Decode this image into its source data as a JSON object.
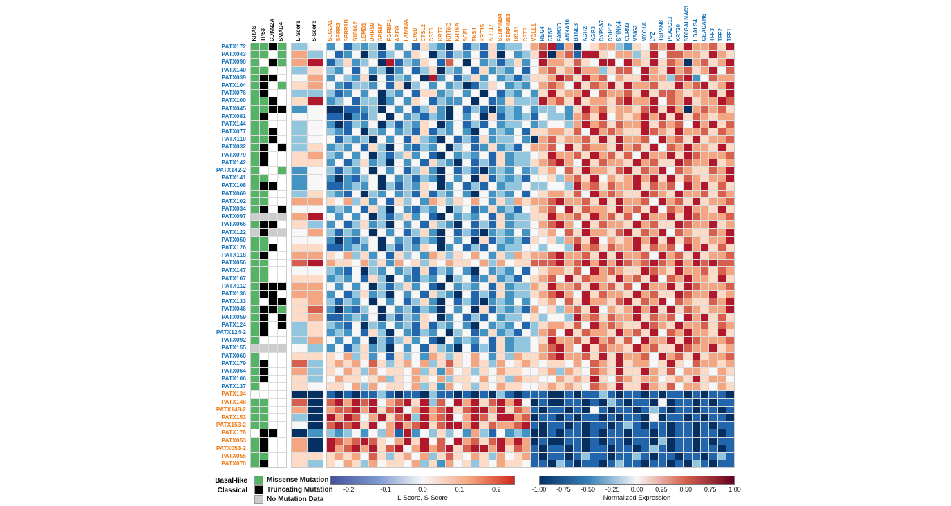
{
  "figure": {
    "class_legend": {
      "basal_label": "Basal-like",
      "classical_label": "Classical"
    },
    "mutation_legend": [
      {
        "label": "Missense Mutation",
        "color": "#54b365"
      },
      {
        "label": "Truncating Mutation",
        "color": "#000000"
      },
      {
        "label": "No Mutation Data",
        "color": "#cccccc"
      }
    ],
    "colorbar_score": {
      "ticks": [
        "-0.2",
        "-0.1",
        "0.0",
        "0.1",
        "0.2"
      ],
      "label": "L-Score, S-Score"
    },
    "colorbar_expression": {
      "ticks": [
        "-1.00",
        "-0.75",
        "-0.50",
        "-0.25",
        "0.00",
        "0.25",
        "0.50",
        "0.75",
        "1.00"
      ],
      "label": "Normalized Expression"
    }
  },
  "chart_data": {
    "type": "heatmap",
    "mutation_columns": [
      "KRAS",
      "TP53",
      "CDKN2A",
      "SMAD4"
    ],
    "score_columns": [
      "L-Score",
      "S-Score"
    ],
    "basal_genes": [
      "SLC2A1",
      "SPRR3",
      "SPRR1B",
      "S100A2",
      "LEMD1",
      "DHRS9",
      "GPR87",
      "FGFBP1",
      "AREG",
      "FAM83A",
      "LY6D",
      "CTSL2",
      "CST6",
      "KRT7",
      "KRT6C",
      "KRT6A",
      "SCEL",
      "TNS4",
      "KRT15",
      "KRT17",
      "SERPINB4",
      "SERPINB3",
      "UCA1",
      "CST6",
      "VGLL1"
    ],
    "classical_genes": [
      "REG4",
      "CTSE",
      "FAM3D",
      "ANXA10",
      "BTNL8",
      "AGR2",
      "AGR3",
      "CYP3A7",
      "CDH17",
      "SPINK4",
      "CLRN3",
      "VSIG2",
      "MYO1A",
      "LYZ",
      "TSPAN8",
      "PLA2G10",
      "KRT20",
      "ST6GALNAC1",
      "LGALS4",
      "CEACAM6",
      "TFF3",
      "TFF2",
      "TFF1"
    ],
    "samples": [
      "PATX172",
      "PATX043",
      "PATX090",
      "PATX140",
      "PATX039",
      "PATX104",
      "PATX076",
      "PATX100",
      "PATX045",
      "PATX081",
      "PATX144",
      "PATX077",
      "PATX110",
      "PATX032",
      "PATX079",
      "PATX142",
      "PATX142-2",
      "PATX141",
      "PATX108",
      "PATX069",
      "PATX102",
      "PATX034",
      "PATX097",
      "PATX066",
      "PATX122",
      "PATX050",
      "PATX126",
      "PATX118",
      "PATX056",
      "PATX147",
      "PATX107",
      "PATX112",
      "PATX136",
      "PATX133",
      "PATX046",
      "PATX059",
      "PATX124",
      "PATX124-2",
      "PATX092",
      "PATX155",
      "PATX060",
      "PATX179",
      "PATX064",
      "PATX106",
      "PATX137",
      "PATX134",
      "PATX148",
      "PATX148-2",
      "PATX153",
      "PATX153-2",
      "PATX178",
      "PATX053",
      "PATX053-2",
      "PATX055",
      "PATX070"
    ],
    "sample_subtype": [
      "C",
      "C",
      "C",
      "C",
      "C",
      "C",
      "C",
      "C",
      "C",
      "C",
      "C",
      "C",
      "C",
      "C",
      "C",
      "C",
      "C",
      "C",
      "C",
      "C",
      "C",
      "C",
      "C",
      "C",
      "C",
      "C",
      "C",
      "C",
      "C",
      "C",
      "C",
      "C",
      "C",
      "C",
      "C",
      "C",
      "C",
      "C",
      "C",
      "C",
      "C",
      "C",
      "C",
      "C",
      "C",
      "B",
      "B",
      "B",
      "B",
      "B",
      "B",
      "B",
      "B",
      "B",
      "B"
    ],
    "mutation_code_legend": {
      "G": "Missense Mutation",
      "K": "Truncating Mutation",
      "W": "No Mutation",
      "N": "No Mutation Data"
    },
    "mutations": [
      "GGKG",
      "GGWG",
      "GWKG",
      "GGWW",
      "GKKW",
      "GKWG",
      "GKWW",
      "GGKW",
      "GGKK",
      "GKWW",
      "GGWW",
      "GGKW",
      "GGKW",
      "GKWK",
      "GKWW",
      "GKWW",
      "GWWG",
      "GGWW",
      "GKKW",
      "GGWW",
      "GGWW",
      "GKWK",
      "NNNN",
      "GKKW",
      "NKNN",
      "GGWW",
      "GGKW",
      "GKWW",
      "GGWW",
      "GGWW",
      "GGWW",
      "GKKK",
      "GKKW",
      "GWKK",
      "GKKG",
      "GKWK",
      "GKWK",
      "GKWW",
      "GWWW",
      "NNNN",
      "GWWW",
      "GKWW",
      "GKWW",
      "GKWW",
      "GWWW",
      "WWWW",
      "GGWW",
      "GGWW",
      "GGWW",
      "GGWW",
      "WKKW",
      "GKWW",
      "GKWW",
      "GGWW",
      "GKWW"
    ],
    "score_range": [
      -0.25,
      0.25
    ],
    "l_score": [
      -0.08,
      0.12,
      0.13,
      -0.08,
      0.02,
      0.06,
      -0.08,
      0.06,
      -0.15,
      -0.02,
      -0.08,
      -0.07,
      -0.08,
      -0.04,
      0.05,
      0.05,
      -0.1,
      -0.14,
      -0.14,
      -0.04,
      0.14,
      0.02,
      0.12,
      0.05,
      0.02,
      0.02,
      0.04,
      0.13,
      0.21,
      0.0,
      0.06,
      0.12,
      0.12,
      0.06,
      0.05,
      0.06,
      -0.08,
      -0.08,
      -0.09,
      0.0,
      0.06,
      0.17,
      0.12,
      0.06,
      0.05,
      -0.22,
      0.16,
      0.12,
      -0.08,
      0.0,
      -0.22,
      0.12,
      0.12,
      0.06,
      0.06
    ],
    "s_score": [
      0.0,
      -0.07,
      0.24,
      0.05,
      0.12,
      0.12,
      -0.05,
      0.24,
      0.0,
      0.0,
      0.0,
      0.02,
      0.02,
      0.05,
      0.12,
      0.06,
      0.0,
      0.0,
      0.02,
      0.06,
      0.13,
      0.0,
      0.24,
      -0.07,
      0.12,
      0.0,
      0.06,
      0.13,
      0.22,
      -0.03,
      0.06,
      0.15,
      0.12,
      0.12,
      0.16,
      0.12,
      0.05,
      0.05,
      0.12,
      -0.04,
      0.06,
      -0.08,
      -0.08,
      -0.07,
      0.0,
      -0.24,
      -0.24,
      -0.24,
      -0.24,
      -0.24,
      -0.15,
      -0.24,
      -0.24,
      0.06,
      -0.08
    ],
    "expression_value_encoding": "each digit 0-8 maps linearly to normalized expression -1.0 .. +1.0 (4 = 0.0)",
    "expression_palette": [
      "#053061",
      "#2166AC",
      "#4393C3",
      "#92C5DE",
      "#F7F7F7",
      "#FDDBC7",
      "#F4A582",
      "#D6604D",
      "#B2182B"
    ],
    "expression_matrix": [
      "241323042415320413152334678160456632547685866758",
      "412403134254031324150423580671885466358477665865",
      "135234081325417404231352486657548848658576067568",
      "324142302413503241523241467568663577486586756847",
      "243250413240824135242313556875867465586637824766",
      "421332415034242301354232467648576858667558678568",
      "312424032415523424041324258566847667585776566858",
      "234133024254132240412533386758566578668476856687",
      "001123042413520413102324233425867566578586067675",
      "110213404231320424051323143326758465686858576566",
      "201324031325402413142334234436867576685767486857",
      "321403242315132420423241556657486765587658667576",
      "413230424153204131523342067566758586674867585667",
      "232415304213240341252314667485766586758476866585",
      "324240313524104232415233458667586757486685876667",
      "241352304241532041315233567864857665867558766856",
      "313240424135204131023242356475866578576847655768",
      "202134042313204240513231445367584656868585765668",
      "112324031325402413142334334438675766857674868575",
      "321403242315132420423241456657486765587658667576",
      "546352415342653546425365667866758586674867585667",
      "232415304213240341252314567485766586758476866585",
      "424240313524104232415233558667586757486685876667",
      "241352304241532041315233467864857665867558766856",
      "313240424135204131023242456475866578576847655768",
      "202134042313204240513231545367584656868585765668",
      "112324031325402413142334434438675766857674868575",
      "546352415342653546425365667866758586674867585667",
      "655463526453546554636455777867868687678768687877",
      "321403242315132420423241456657486765587658667576",
      "232415304213240341252314567485766586758476866585",
      "424240313524104232415233658667586757486685876667",
      "241352304241532041315233567864857665867558766856",
      "313240424135204131023242456475866578576847655768",
      "202134042313204240513231645367584656868585765668",
      "112324031325402413142334534438675766857674868575",
      "321403242315132420423241356657486765587658667576",
      "232415304213240341252314367485766586758476866585",
      "424240313524104232415233458667586757486685876667",
      "241352304241532041315233467864857665867558766856",
      "546352415342653546425365567866758586674867585667",
      "565647535646357546536456545546476585664585476656",
      "546536455463526453546554456365476585586574665465",
      "465545635465463554645365544656585476566456585664",
      "554636455463526453546554456565476585586574665465",
      "101011310110311010103101110010113101101011010110",
      "786878467858374868578684010011010310110401101011",
      "677868578468678578868576101101041011013101101101",
      "868746857838678468758867011010110101104011010110",
      "787858468678578868576678101101011013101101101011",
      "323424361824353426314232001011010110110101101101",
      "876787546858474867578686010011010110110301101011",
      "867868578468678578868576101101011011013101101101",
      "565647535646357546536456101101311011310110110131",
      "546536455463526453546554110310110131101101031011"
    ],
    "colors": {
      "basal": "#f07d1a",
      "classical": "#1d76bb",
      "missense": "#54b365",
      "truncating": "#000000",
      "no_data": "#cccccc"
    }
  }
}
